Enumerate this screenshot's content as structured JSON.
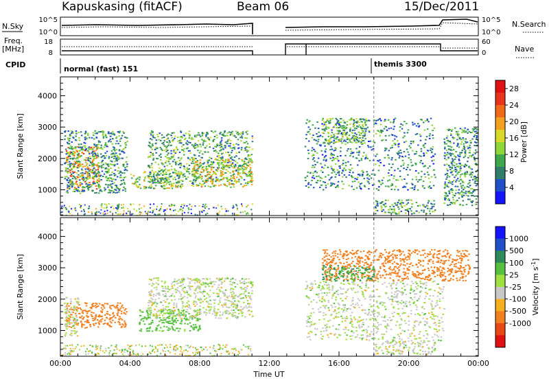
{
  "header": {
    "station": "Kapuskasing (fitACF)",
    "beam": "Beam 06",
    "date": "15/Dec/2011"
  },
  "status_panels": {
    "left_labels": {
      "nsky": "N.Sky",
      "freq": "Freq.",
      "freq_unit": "[MHz]",
      "cpid": "CPID"
    },
    "right_labels": {
      "nsearch": "N.Search",
      "nave": "Nave"
    },
    "noise_left_ticks": [
      "10^5",
      "10^0"
    ],
    "noise_right_ticks": [
      "10^5",
      "10^0"
    ],
    "freq_left_ticks": [
      "18",
      "8"
    ],
    "freq_right_ticks": [
      "60",
      "0"
    ],
    "cpid_entries": [
      {
        "label": "normal (fast) 151",
        "start_hour": 0.0
      },
      {
        "label": "themis 3300",
        "start_hour": 18.0
      }
    ]
  },
  "chart_data": [
    {
      "type": "heatmap",
      "title": "",
      "xlabel": "",
      "ylabel": "Slant Range [km]",
      "xlim": [
        0,
        24
      ],
      "ylim": [
        180,
        4600
      ],
      "x_tick_labels": [
        "00:00",
        "04:00",
        "08:00",
        "12:00",
        "16:00",
        "20:00",
        "00:00"
      ],
      "y_ticks": [
        1000,
        2000,
        3000,
        4000
      ],
      "colorbar": {
        "label": "Power [dB]",
        "ticks": [
          4,
          8,
          12,
          16,
          20,
          24,
          28
        ],
        "range": [
          0,
          30
        ],
        "colors": [
          "#1414ff",
          "#2250c8",
          "#2f7d6a",
          "#3ea84a",
          "#8fd63a",
          "#d9d92a",
          "#f5a020",
          "#f06a1a",
          "#e8321a",
          "#e01010"
        ]
      },
      "data_gap_hours": [
        11.1,
        13.0
      ],
      "regions": [
        {
          "x": [
            0.3,
            2.2
          ],
          "y": [
            1000,
            2400
          ],
          "value": 20
        },
        {
          "x": [
            0.2,
            3.8
          ],
          "y": [
            900,
            2900
          ],
          "value": 9
        },
        {
          "x": [
            4.0,
            7.0
          ],
          "y": [
            1050,
            1650
          ],
          "value": 14
        },
        {
          "x": [
            5.0,
            11.0
          ],
          "y": [
            1200,
            2900
          ],
          "value": 10
        },
        {
          "x": [
            7.5,
            11.0
          ],
          "y": [
            1100,
            2000
          ],
          "value": 16
        },
        {
          "x": [
            14.0,
            21.5
          ],
          "y": [
            1000,
            3300
          ],
          "value": 8
        },
        {
          "x": [
            15.0,
            17.5
          ],
          "y": [
            2500,
            3300
          ],
          "value": 12
        },
        {
          "x": [
            18.0,
            21.5
          ],
          "y": [
            250,
            700
          ],
          "value": 10
        },
        {
          "x": [
            22.0,
            24.0
          ],
          "y": [
            500,
            3000
          ],
          "value": 9
        }
      ]
    },
    {
      "type": "heatmap",
      "title": "",
      "xlabel": "Time UT",
      "ylabel": "Slant Range [km]",
      "xlim": [
        0,
        24
      ],
      "ylim": [
        180,
        4600
      ],
      "x_tick_labels": [
        "00:00",
        "04:00",
        "08:00",
        "12:00",
        "16:00",
        "20:00",
        "00:00"
      ],
      "y_ticks": [
        1000,
        2000,
        3000,
        4000
      ],
      "colorbar": {
        "label": "Velocity [m s^-1]",
        "ticks": [
          1000,
          500,
          100,
          25,
          -25,
          -100,
          -500,
          -1000
        ],
        "colors": [
          "#1414ff",
          "#2250c8",
          "#2f8a5a",
          "#56c040",
          "#a0e040",
          "#c8c8c8",
          "#f5b020",
          "#f08020",
          "#e84818",
          "#e01010"
        ]
      },
      "data_gap_hours": [
        11.1,
        13.0
      ],
      "regions": [
        {
          "x": [
            0.3,
            3.8
          ],
          "y": [
            1100,
            1900
          ],
          "value": -150
        },
        {
          "x": [
            0.2,
            1.0
          ],
          "y": [
            800,
            2100
          ],
          "value": 0
        },
        {
          "x": [
            4.5,
            8.0
          ],
          "y": [
            1000,
            1700
          ],
          "value": 50
        },
        {
          "x": [
            5.0,
            11.0
          ],
          "y": [
            1400,
            2700
          ],
          "value": 0
        },
        {
          "x": [
            14.0,
            22.0
          ],
          "y": [
            700,
            2600
          ],
          "value": 0
        },
        {
          "x": [
            15.0,
            23.5
          ],
          "y": [
            2600,
            3600
          ],
          "value": -200
        },
        {
          "x": [
            15.0,
            18.0
          ],
          "y": [
            2600,
            3100
          ],
          "value": 100
        },
        {
          "x": [
            18.0,
            21.5
          ],
          "y": [
            250,
            700
          ],
          "value": 0
        }
      ]
    }
  ]
}
